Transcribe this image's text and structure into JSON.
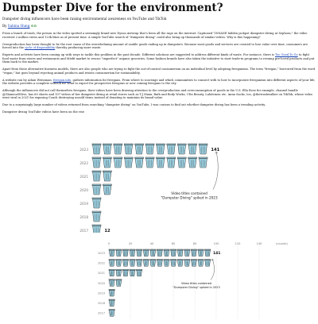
{
  "article": {
    "title": "Dumpster Dive for the environment?",
    "subtitle": "Dumpster diving influencers have been raising environmental awareness on YouTube and TikTok",
    "byline_prefix": "By",
    "author": "Sabina Hung",
    "author_emoji": "♻♻",
    "paragraphs": [
      {
        "pre": "From a bunch of trash, the person in the video spotted a seemingly brand new Dyson Airwrap that's been all the rage on the internet. Captioned \"INSANE hidden jackpot dumpster diving at Sephora,\" the video received 2 million views and 123k likes as of present time. A simple YouTube search of \"dumpster diving\" could also bring up thousands of similar videos. Why is this happening?",
        "link": "",
        "post": ""
      },
      {
        "pre": "Overproduction has been thought to be the root cause of the overwhelming amount of usable goods ending up in dumpsters. Because most goods and services are created to lose value over time, consumers are forced into the ",
        "link": "cycle of disposability",
        "post": " thereby producing more waste."
      },
      {
        "pre": "Experts and activists have been coming up with ways to tackle this problem in the past decade. Different solutions are suggested to address different kinds of waste. For instance, there is ",
        "link": "Too Good To Go",
        "post": " to fight food waste from stores and restaurants and Misfit market to rescue \"imperfect\" organic groceries. Some fashion brands have also taken the initiative to start trade-in programs to revamp pre-loved products and put them back to the market."
      },
      {
        "pre": "Apart from these alternative business models, there are also people who are trying to fight the out-of-control consumerism on an individual level by adopting freeganism. The term \"freegan,\" borrowed from the word \"vegan,\" but goes beyond rejecting animal products and resists consumerism for sustainability.",
        "link": "",
        "post": ""
      },
      {
        "pre": "A website run by Adam Weissman, ",
        "link": "freegan.info",
        "post": ", gathers information for freegans. From where to scavenge and which communities to connect with to how to incorporate freeganism into different aspects of your life, the website provides a complete outlook for what to expect for prospective freegans or new coming freegans to the city."
      },
      {
        "pre": "Although the influencers did not call themselves freegans, their videos have been drawing attention to the overproduction and overconsumption of goods in the U.S. Ella Rose for example, channel handle @GlamourDDive, has 60 shorts and 107 videos of her dumpster diving at retail stores such as T.J Maxx, Bath and Body Works, Ulta Beauty, Lululemon etc. Anna Sacks, too, @thetrashwalker on TikTok, whose video went viral in 2021 for exposing Coach destroying unsold items instead of donating to maintain its brand value.",
        "link": "",
        "post": ""
      },
      {
        "pre": "Due to a surprisingly large number of videos returned from searching \"dumpster diving\" on YouTube, I was curious to find out whether dumpster diving has been a trending activity.",
        "link": "",
        "post": ""
      }
    ],
    "chart_heading": "Dumpster diving YouTube videos have been on the rise"
  },
  "chart_data": [
    {
      "type": "pictogram",
      "unit": "trash can icons",
      "categories": [
        "2017",
        "2018",
        "2019",
        "2020",
        "2021",
        "2022",
        "2023"
      ],
      "values": [
        12,
        0,
        0,
        0,
        0,
        0,
        141
      ],
      "value_labels": [
        "12",
        "",
        "",
        "",
        "",
        "",
        "141"
      ],
      "visible_icon_counts": [
        1,
        1,
        1,
        2,
        2,
        11,
        11
      ],
      "annotation": "Video titles contained\n\"Dumpster Diving\" spiked in 2023",
      "icon_color": "#9fd6e8",
      "icon_outline": "#333333",
      "grid": false
    },
    {
      "type": "pictogram",
      "unit": "counts",
      "categories": [
        "2017",
        "2018",
        "2019",
        "2020",
        "2021",
        "2022",
        "2023"
      ],
      "values": [
        12,
        0,
        0,
        0,
        0,
        0,
        141
      ],
      "value_labels": [
        "",
        "",
        "",
        "",
        "",
        "",
        "141"
      ],
      "visible_icon_counts": [
        1,
        1,
        1,
        2,
        5,
        15,
        15
      ],
      "x_ticks": [
        "0",
        "20",
        "40",
        "60",
        "80",
        "100",
        "120",
        "140"
      ],
      "x_unit_label": "(counts)",
      "annotation": "Video titles contained\n\"Dumpster Diving\" spiked in 2023",
      "icon_color": "#9fd6e8",
      "icon_outline": "#333333",
      "grid": true
    }
  ]
}
